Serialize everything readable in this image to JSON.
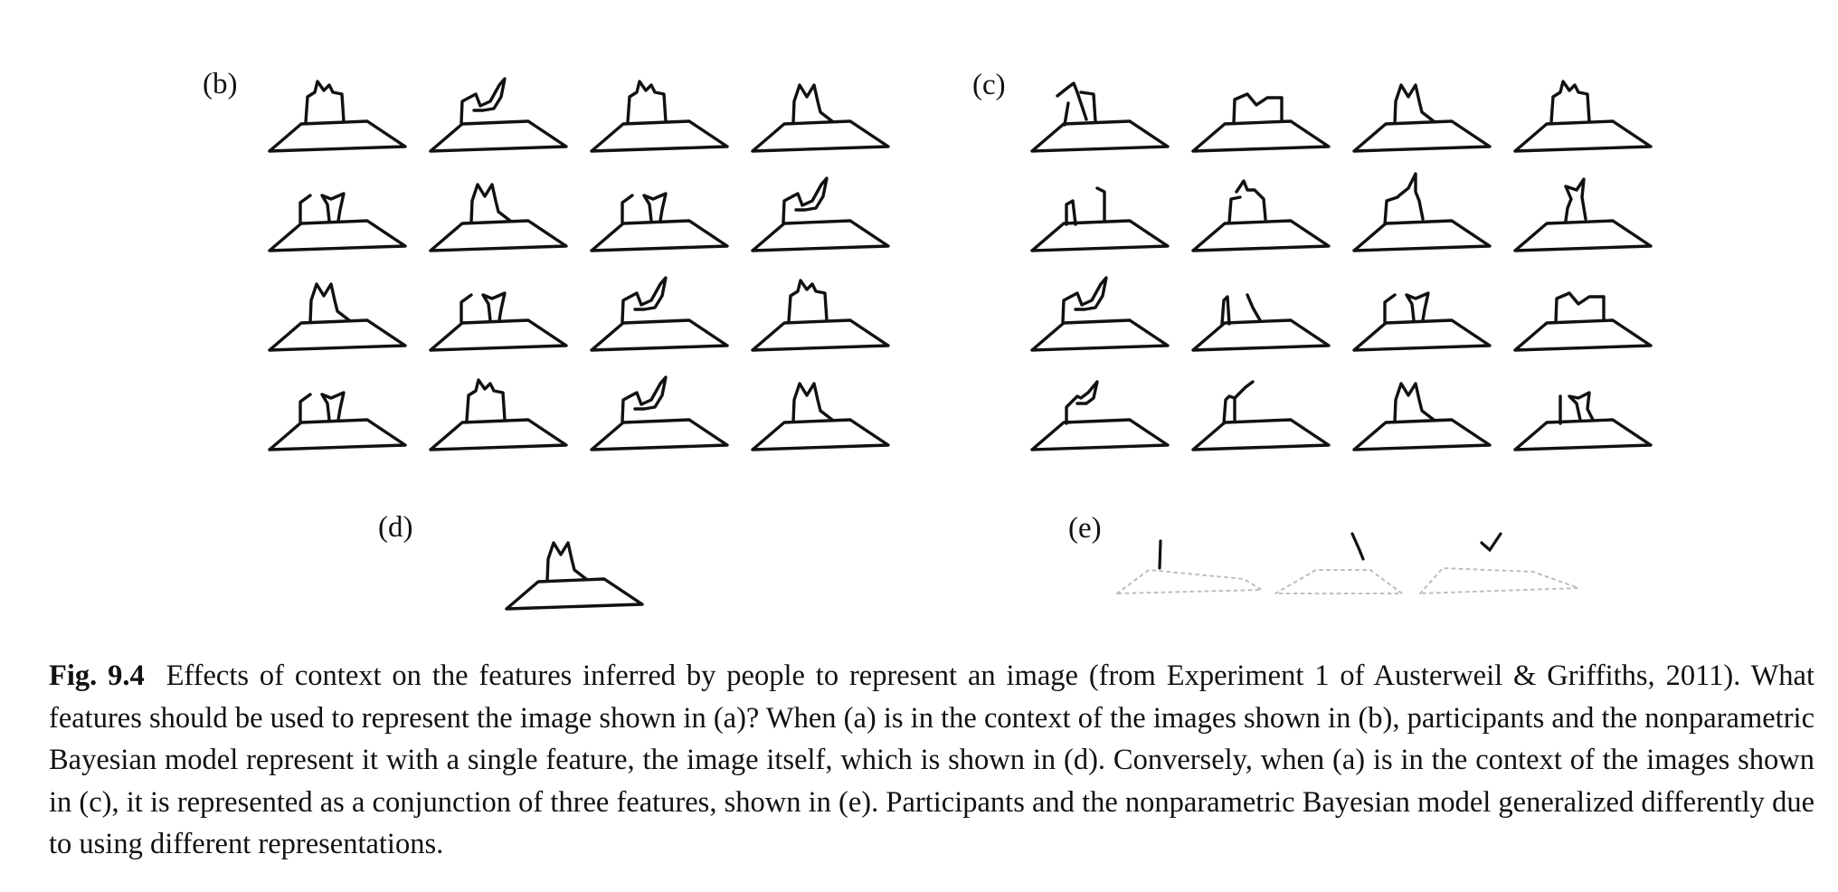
{
  "panels": {
    "b": {
      "label": "(b)",
      "items": [
        "crown",
        "hook",
        "crown",
        "m-peak",
        "split",
        "m-peak",
        "split",
        "hook",
        "m-peak",
        "split",
        "hook",
        "crown",
        "split",
        "crown",
        "hook",
        "m-peak"
      ]
    },
    "c": {
      "label": "(c)",
      "items": [
        "cross",
        "wave",
        "m-peak",
        "crown",
        "stub-pair",
        "hook-tall",
        "spike",
        "spike-left",
        "hook",
        "twin-posts",
        "split",
        "wave",
        "hook-low",
        "post-hook",
        "m-peak",
        "open-split"
      ]
    },
    "d": {
      "label": "(d)",
      "items": [
        "m-peak"
      ]
    },
    "e": {
      "label": "(e)",
      "features": [
        "left-post",
        "middle-tick",
        "right-v"
      ]
    }
  },
  "caption": {
    "fig_number": "Fig. 9.4",
    "text": "Effects of context on the features inferred by people to represent an image (from Experiment 1 of Austerweil & Griffiths, 2011). What features should be used to represent the image shown in (a)? When (a) is in the context of the images shown in (b), participants and the nonparametric Bayesian model represent it with a single feature, the image itself, which is shown in (d). Conversely, when (a) is in the context of the images shown in (c), it is represented as a conjunction of three features, shown in (e). Participants and the nonparametric Bayesian model generalized differently due to using different representations."
  }
}
